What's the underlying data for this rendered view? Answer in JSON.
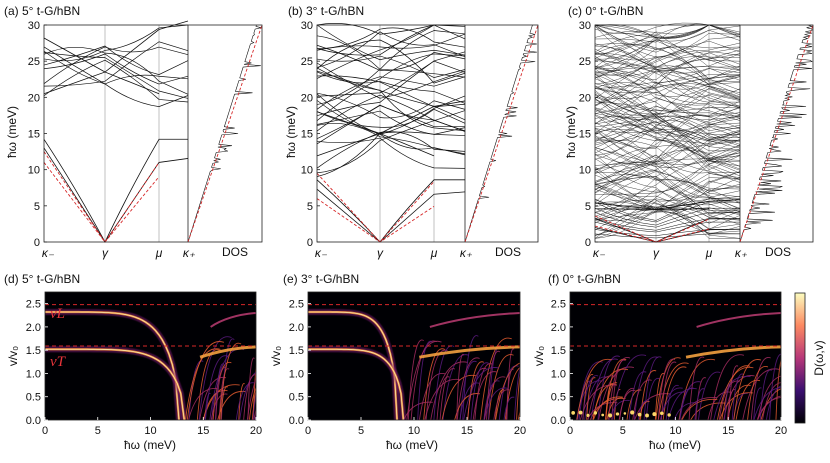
{
  "colors": {
    "dashed": "#d62728",
    "heat_low": "#000004",
    "heat_mid": "#b73779",
    "heat_high": "#fcfdbf",
    "line": "#111111"
  },
  "chart_data": [
    {
      "type": "line",
      "panel": "a",
      "title": "(a) 5° t-G/hBN",
      "twist_deg": 5,
      "ylabel": "ħω (meV)",
      "ylim": [
        0,
        30
      ],
      "yticks": [
        "0",
        "5",
        "10",
        "15",
        "20",
        "25",
        "30"
      ],
      "kpath": [
        "κ₋",
        "γ",
        "μ",
        "κ₊"
      ],
      "dos_label": "DOS",
      "lowest_modes_meV": {
        "kminus": [
          13.0,
          14.2,
          20.5
        ],
        "mu": [
          11.0,
          14.2,
          20.5
        ],
        "gamma_crossing": 23.5
      },
      "dashed_L_slope_meV_per_unit": 12.2,
      "dashed_T_slope_meV_per_unit": 7.8
    },
    {
      "type": "line",
      "panel": "b",
      "title": "(b) 3° t-G/hBN",
      "twist_deg": 3,
      "ylabel": "ħω (meV)",
      "ylim": [
        0,
        30
      ],
      "yticks": [
        "0",
        "5",
        "10",
        "15",
        "20",
        "25",
        "30"
      ],
      "kpath": [
        "κ₋",
        "γ",
        "μ",
        "κ₊"
      ],
      "dos_label": "DOS",
      "lowest_modes_meV": {
        "kminus": [
          7.3,
          8.6,
          11.9
        ],
        "mu": [
          6.6,
          8.6,
          11.9
        ],
        "gamma_crossing": 15.0
      },
      "dashed_L_slope_meV_per_unit": 12.2,
      "dashed_T_slope_meV_per_unit": 7.8
    },
    {
      "type": "line",
      "panel": "c",
      "title": "(c) 0° t-G/hBN",
      "twist_deg": 0,
      "ylabel": "ħω (meV)",
      "ylim": [
        0,
        30
      ],
      "yticks": [
        "0",
        "5",
        "10",
        "15",
        "20",
        "25",
        "30"
      ],
      "kpath": [
        "κ₋",
        "γ",
        "μ",
        "κ₊"
      ],
      "dos_label": "DOS",
      "lowest_modes_meV": {
        "kminus": [
          2.0,
          3.2,
          4.6
        ],
        "mu": [
          1.7,
          3.2,
          4.6
        ],
        "gamma_crossing": 4.5
      },
      "dashed_L_slope_meV_per_unit": 12.2,
      "dashed_T_slope_meV_per_unit": 7.8
    },
    {
      "type": "heatmap",
      "panel": "d",
      "title": "(d) 5° t-G/hBN",
      "xlabel": "ħω (meV)",
      "ylabel": "v/v₀",
      "xlim": [
        0,
        20
      ],
      "ylim": [
        0,
        2.75
      ],
      "xticks": [
        "0",
        "5",
        "10",
        "15",
        "20"
      ],
      "yticks": [
        "0.0",
        "0.5",
        "1.0",
        "1.5",
        "2.0",
        "2.5"
      ],
      "hlines": [
        2.48,
        1.59
      ],
      "vL_label": "vL",
      "vT_label": "vT",
      "omega_L_meV": 12.7,
      "omega_T_meV": 13.2
    },
    {
      "type": "heatmap",
      "panel": "e",
      "title": "(e) 3° t-G/hBN",
      "xlabel": "ħω (meV)",
      "ylabel": "v/v₀",
      "xlim": [
        0,
        20
      ],
      "ylim": [
        0,
        2.75
      ],
      "xticks": [
        "0",
        "5",
        "10",
        "15",
        "20"
      ],
      "yticks": [
        "0.0",
        "0.5",
        "1.0",
        "1.5",
        "2.0",
        "2.5"
      ],
      "hlines": [
        2.48,
        1.59
      ],
      "omega_L_meV": 8.4,
      "omega_T_meV": 9.0
    },
    {
      "type": "heatmap",
      "panel": "f",
      "title": "(f) 0° t-G/hBN",
      "xlabel": "ħω (meV)",
      "ylabel": "v/v₀",
      "xlim": [
        0,
        20
      ],
      "ylim": [
        0,
        2.75
      ],
      "xticks": [
        "0",
        "5",
        "10",
        "15",
        "20"
      ],
      "yticks": [
        "0.0",
        "0.5",
        "1.0",
        "1.5",
        "2.0",
        "2.5"
      ],
      "hlines": [
        2.48,
        1.59
      ],
      "omega_L_meV": 2.2,
      "omega_T_meV": 2.4
    }
  ],
  "colorbar": {
    "label": "D(ω,v)"
  }
}
